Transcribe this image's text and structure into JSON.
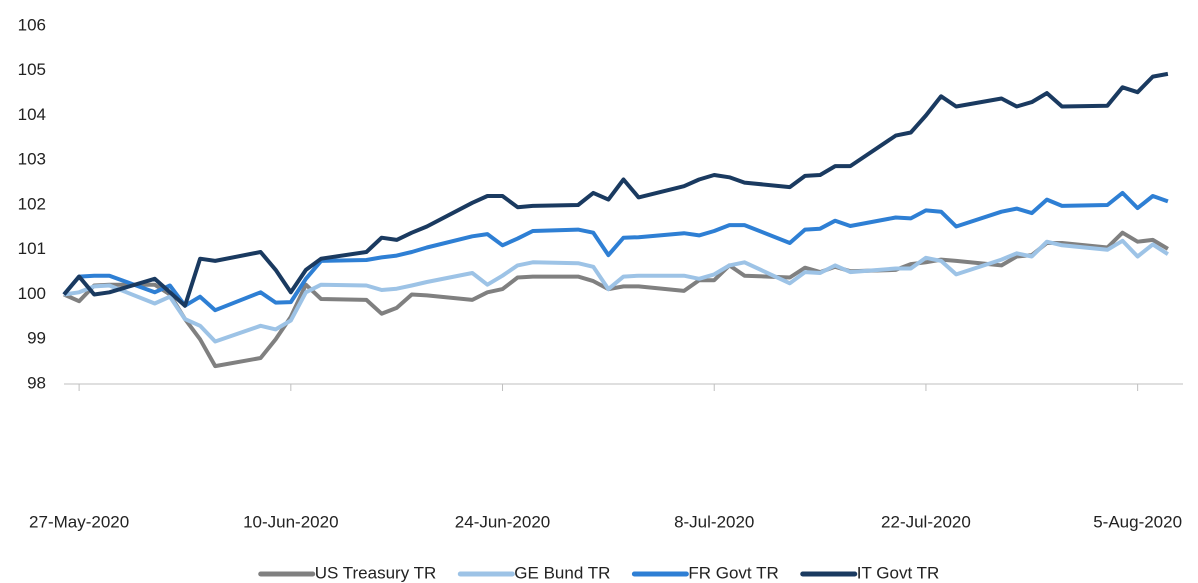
{
  "chart_data": {
    "type": "line",
    "x": [
      "26-May-2020",
      "27-May-2020",
      "28-May-2020",
      "29-May-2020",
      "1-Jun-2020",
      "2-Jun-2020",
      "3-Jun-2020",
      "4-Jun-2020",
      "5-Jun-2020",
      "8-Jun-2020",
      "9-Jun-2020",
      "10-Jun-2020",
      "11-Jun-2020",
      "12-Jun-2020",
      "15-Jun-2020",
      "16-Jun-2020",
      "17-Jun-2020",
      "18-Jun-2020",
      "19-Jun-2020",
      "22-Jun-2020",
      "23-Jun-2020",
      "24-Jun-2020",
      "25-Jun-2020",
      "26-Jun-2020",
      "29-Jun-2020",
      "30-Jun-2020",
      "1-Jul-2020",
      "2-Jul-2020",
      "3-Jul-2020",
      "6-Jul-2020",
      "7-Jul-2020",
      "8-Jul-2020",
      "9-Jul-2020",
      "10-Jul-2020",
      "13-Jul-2020",
      "14-Jul-2020",
      "15-Jul-2020",
      "16-Jul-2020",
      "17-Jul-2020",
      "20-Jul-2020",
      "21-Jul-2020",
      "22-Jul-2020",
      "23-Jul-2020",
      "24-Jul-2020",
      "27-Jul-2020",
      "28-Jul-2020",
      "29-Jul-2020",
      "30-Jul-2020",
      "31-Jul-2020",
      "3-Aug-2020",
      "4-Aug-2020",
      "5-Aug-2020",
      "6-Aug-2020",
      "7-Aug-2020"
    ],
    "series": [
      {
        "name": "US Treasury TR",
        "color": "#808080",
        "values": [
          100,
          99.85,
          100.2,
          100.22,
          100.22,
          100.0,
          99.45,
          99.0,
          98.4,
          98.58,
          99.0,
          99.5,
          100.22,
          99.9,
          99.88,
          99.57,
          99.7,
          100.0,
          99.98,
          99.88,
          100.05,
          100.12,
          100.38,
          100.4,
          100.4,
          100.3,
          100.12,
          100.18,
          100.18,
          100.08,
          100.32,
          100.32,
          100.65,
          100.42,
          100.38,
          100.6,
          100.5,
          100.62,
          100.52,
          100.55,
          100.68,
          100.72,
          100.78,
          100.75,
          100.65,
          100.85,
          100.88,
          101.15,
          101.15,
          101.05,
          101.38,
          101.18,
          101.22,
          101.02
        ]
      },
      {
        "name": "GE Bund TR",
        "color": "#9dc3e6",
        "values": [
          100,
          100.05,
          100.18,
          100.2,
          99.8,
          99.95,
          99.45,
          99.3,
          98.95,
          99.3,
          99.22,
          99.42,
          100.05,
          100.22,
          100.2,
          100.1,
          100.13,
          100.2,
          100.28,
          100.48,
          100.22,
          100.42,
          100.65,
          100.72,
          100.7,
          100.62,
          100.12,
          100.4,
          100.42,
          100.42,
          100.35,
          100.45,
          100.65,
          100.72,
          100.25,
          100.5,
          100.48,
          100.65,
          100.5,
          100.58,
          100.58,
          100.82,
          100.75,
          100.45,
          100.78,
          100.92,
          100.85,
          101.18,
          101.1,
          101.0,
          101.2,
          100.85,
          101.12,
          100.9
        ]
      },
      {
        "name": "FR Govt TR",
        "color": "#2e7fd4",
        "values": [
          100,
          100.4,
          100.42,
          100.42,
          100.05,
          100.2,
          99.75,
          99.95,
          99.65,
          100.05,
          99.82,
          99.83,
          100.35,
          100.75,
          100.77,
          100.83,
          100.87,
          100.95,
          101.05,
          101.3,
          101.35,
          101.1,
          101.25,
          101.42,
          101.45,
          101.38,
          100.88,
          101.27,
          101.28,
          101.37,
          101.32,
          101.42,
          101.55,
          101.55,
          101.15,
          101.45,
          101.47,
          101.65,
          101.53,
          101.72,
          101.7,
          101.88,
          101.85,
          101.52,
          101.85,
          101.92,
          101.82,
          102.12,
          101.98,
          102.0,
          102.27,
          101.93,
          102.2,
          102.08
        ]
      },
      {
        "name": "IT Govt TR",
        "color": "#1a3a60",
        "values": [
          100,
          100.4,
          100.0,
          100.05,
          100.35,
          100.05,
          99.75,
          100.8,
          100.75,
          100.95,
          100.55,
          100.05,
          100.55,
          100.8,
          100.95,
          101.27,
          101.22,
          101.38,
          101.52,
          102.05,
          102.2,
          102.2,
          101.95,
          101.98,
          102.0,
          102.27,
          102.12,
          102.57,
          102.17,
          102.42,
          102.57,
          102.67,
          102.62,
          102.5,
          102.4,
          102.65,
          102.67,
          102.87,
          102.87,
          103.55,
          103.62,
          104.0,
          104.43,
          104.2,
          104.38,
          104.2,
          104.3,
          104.5,
          104.2,
          104.22,
          104.63,
          104.52,
          104.87,
          104.93
        ]
      }
    ],
    "xlim": [
      "26-May-2020",
      "8-Aug-2020"
    ],
    "xticks": [
      "27-May-2020",
      "10-Jun-2020",
      "24-Jun-2020",
      "8-Jul-2020",
      "22-Jul-2020",
      "5-Aug-2020"
    ],
    "ylim": [
      98,
      106
    ],
    "yticks": [
      98,
      99,
      100,
      101,
      102,
      103,
      104,
      105,
      106
    ],
    "legend": "bottom"
  }
}
